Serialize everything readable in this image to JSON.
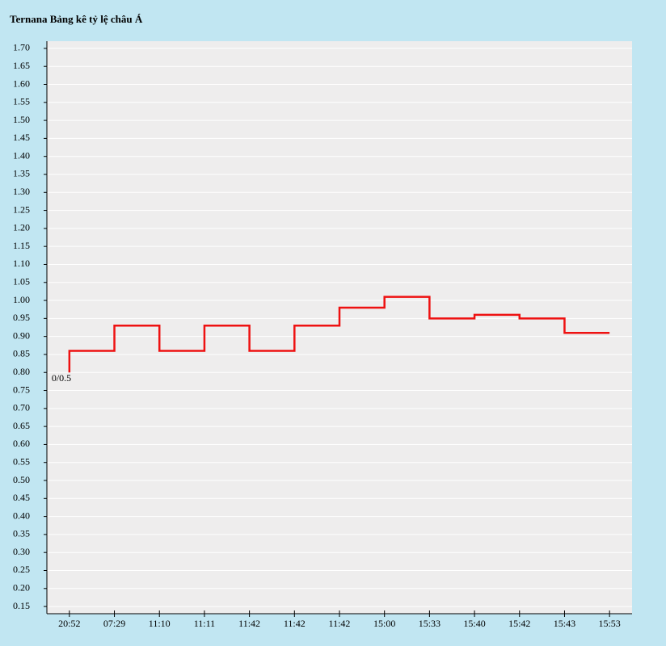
{
  "chart_data": {
    "type": "step",
    "title": "Ternana Bảng kê tỷ lệ châu Á",
    "categories": [
      "20:52",
      "07:29",
      "11:10",
      "11:11",
      "11:42",
      "11:42",
      "11:42",
      "15:00",
      "15:33",
      "15:40",
      "15:42",
      "15:43",
      "15:53"
    ],
    "values": [
      0.8,
      0.86,
      0.93,
      0.86,
      0.93,
      0.86,
      0.93,
      0.98,
      1.01,
      0.95,
      0.96,
      0.95,
      0.91
    ],
    "color": "#ee1111",
    "annotation": "0/0.5",
    "ylim": [
      0.13,
      1.72
    ],
    "yticks": [
      0.15,
      {
        "value": 0.2,
        "label": "0.20"
      },
      0.25,
      {
        "value": 0.3,
        "label": "0.30"
      },
      0.35,
      {
        "value": 0.4,
        "label": "0.40"
      },
      0.45,
      {
        "value": 0.5,
        "label": "0.50"
      },
      0.55,
      {
        "value": 0.6,
        "label": "0.60"
      },
      0.65,
      {
        "value": 0.7,
        "label": "0.70"
      },
      0.75,
      {
        "value": 0.8,
        "label": "0.80"
      },
      0.85,
      {
        "value": 0.9,
        "label": "0.90"
      },
      0.95,
      {
        "value": 1,
        "label": "1.00"
      },
      1.05,
      {
        "value": 1.1,
        "label": "1.10"
      },
      1.15,
      {
        "value": 1.2,
        "label": "1.20"
      },
      1.25,
      {
        "value": 1.3,
        "label": "1.30"
      },
      1.35,
      {
        "value": 1.4,
        "label": "1.40"
      },
      1.45,
      {
        "value": 1.5,
        "label": "1.50"
      },
      1.55,
      {
        "value": 1.6,
        "label": "1.60"
      },
      1.65,
      {
        "value": 1.7,
        "label": "1.70"
      }
    ],
    "grid": true
  }
}
